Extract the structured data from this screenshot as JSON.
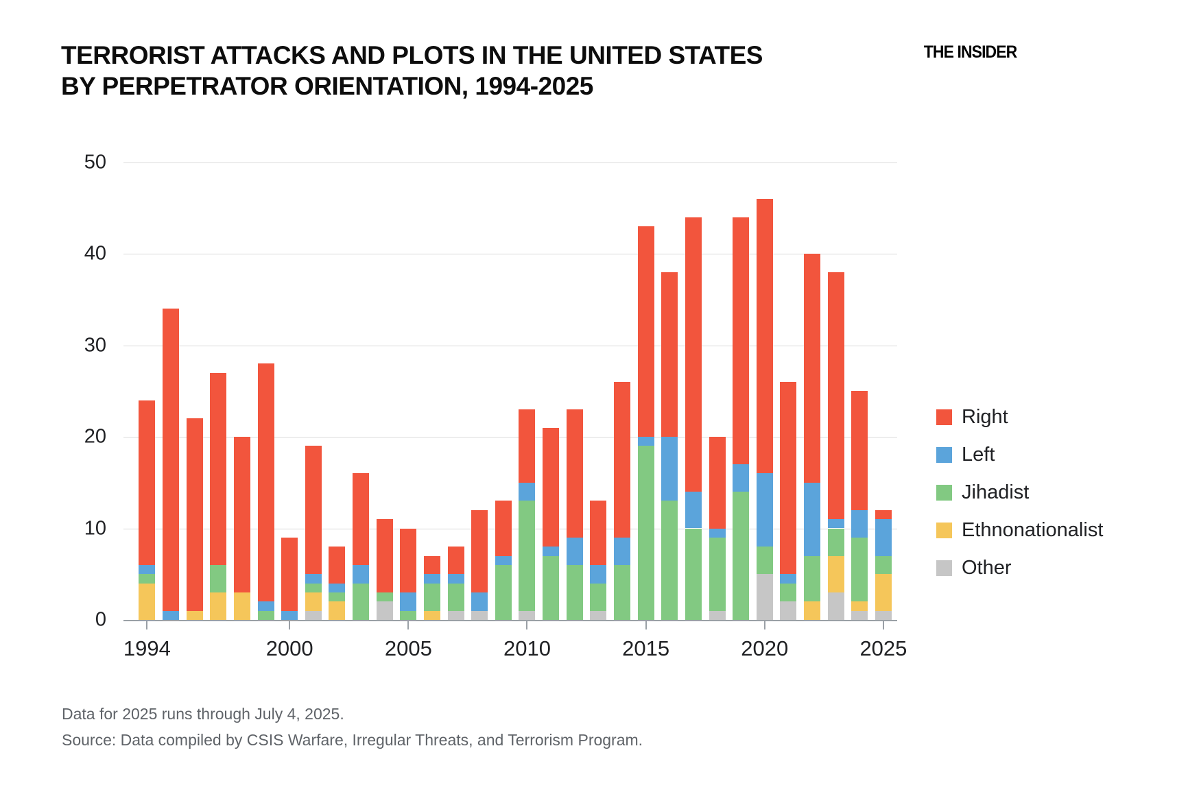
{
  "header": {
    "title_line1": "TERRORIST ATTACKS AND PLOTS IN THE UNITED STATES",
    "title_line2": "BY PERPETRATOR ORIENTATION, 1994-2025",
    "logo": "THE INSIDER"
  },
  "footnotes": {
    "note": "Data for 2025 runs through July 4, 2025.",
    "source": "Source: Data compiled by CSIS Warfare, Irregular Threats, and Terrorism Program."
  },
  "chart_data": {
    "type": "bar",
    "stacked": true,
    "title": "Terrorist attacks and plots in the United States by perpetrator orientation, 1994-2025",
    "categories": [
      1994,
      1995,
      1996,
      1997,
      1998,
      1999,
      2000,
      2001,
      2002,
      2003,
      2004,
      2005,
      2006,
      2007,
      2008,
      2009,
      2010,
      2011,
      2012,
      2013,
      2014,
      2015,
      2016,
      2017,
      2018,
      2019,
      2020,
      2021,
      2022,
      2023,
      2024,
      2025
    ],
    "x_tick_labels": [
      "1994",
      "2000",
      "2005",
      "2010",
      "2015",
      "2020",
      "2025"
    ],
    "y_ticks": [
      0,
      10,
      20,
      30,
      40,
      50
    ],
    "ylim": [
      0,
      50
    ],
    "grid": true,
    "legend_position": "right",
    "stack_order_bottom_to_top": [
      "Other",
      "Ethnonationalist",
      "Jihadist",
      "Left",
      "Right"
    ],
    "series": [
      {
        "name": "Right",
        "color": "#F2553D",
        "values": [
          18,
          33,
          21,
          21,
          17,
          26,
          8,
          14,
          4,
          10,
          8,
          7,
          2,
          3,
          9,
          6,
          8,
          13,
          14,
          7,
          17,
          23,
          18,
          30,
          10,
          27,
          30,
          21,
          25,
          27,
          13,
          1
        ]
      },
      {
        "name": "Left",
        "color": "#5BA4DB",
        "values": [
          1,
          1,
          0,
          0,
          0,
          1,
          1,
          1,
          1,
          2,
          0,
          2,
          1,
          1,
          2,
          1,
          2,
          1,
          3,
          2,
          3,
          1,
          7,
          4,
          1,
          3,
          8,
          1,
          8,
          1,
          3,
          4
        ]
      },
      {
        "name": "Jihadist",
        "color": "#82C982",
        "values": [
          1,
          0,
          0,
          3,
          0,
          1,
          0,
          1,
          1,
          4,
          1,
          1,
          3,
          3,
          0,
          6,
          12,
          7,
          6,
          3,
          6,
          19,
          13,
          10,
          8,
          14,
          3,
          2,
          5,
          3,
          7,
          2
        ]
      },
      {
        "name": "Ethnonationalist",
        "color": "#F5C65A",
        "values": [
          4,
          0,
          1,
          3,
          3,
          0,
          0,
          2,
          2,
          0,
          0,
          0,
          1,
          0,
          0,
          0,
          0,
          0,
          0,
          0,
          0,
          0,
          0,
          0,
          0,
          0,
          0,
          0,
          2,
          4,
          1,
          4
        ]
      },
      {
        "name": "Other",
        "color": "#C6C6C6",
        "values": [
          0,
          0,
          0,
          0,
          0,
          0,
          0,
          1,
          0,
          0,
          2,
          0,
          0,
          1,
          1,
          0,
          1,
          0,
          0,
          1,
          0,
          0,
          0,
          0,
          1,
          0,
          5,
          2,
          0,
          3,
          1,
          1
        ]
      }
    ],
    "totals": [
      24,
      34,
      22,
      27,
      20,
      28,
      9,
      19,
      8,
      16,
      11,
      10,
      7,
      8,
      12,
      13,
      23,
      21,
      23,
      13,
      26,
      43,
      38,
      44,
      20,
      44,
      46,
      26,
      40,
      38,
      25,
      12
    ]
  }
}
